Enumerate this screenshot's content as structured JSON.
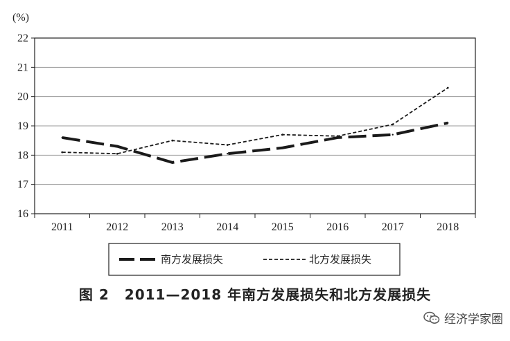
{
  "chart_data": {
    "type": "line",
    "ylabel": "(%)",
    "ylim": [
      16,
      22
    ],
    "yticks": [
      16,
      17,
      18,
      19,
      20,
      21,
      22
    ],
    "categories": [
      "2011",
      "2012",
      "2013",
      "2014",
      "2015",
      "2016",
      "2017",
      "2018"
    ],
    "series": [
      {
        "name": "南方发展损失",
        "values": [
          18.6,
          18.3,
          17.75,
          18.05,
          18.25,
          18.6,
          18.7,
          19.1
        ],
        "style": "long-dash",
        "color": "#1a1a1a"
      },
      {
        "name": "北方发展损失",
        "values": [
          18.1,
          18.05,
          18.5,
          18.35,
          18.7,
          18.65,
          19.05,
          20.3
        ],
        "style": "short-dash",
        "color": "#1a1a1a"
      }
    ],
    "grid": true,
    "legend": "bottom"
  },
  "caption": {
    "figure_number": "图 2",
    "title": "2011—2018 年南方发展损失和北方发展损失"
  },
  "watermark": {
    "text": "经济学家圈",
    "icon": "wechat-icon"
  }
}
